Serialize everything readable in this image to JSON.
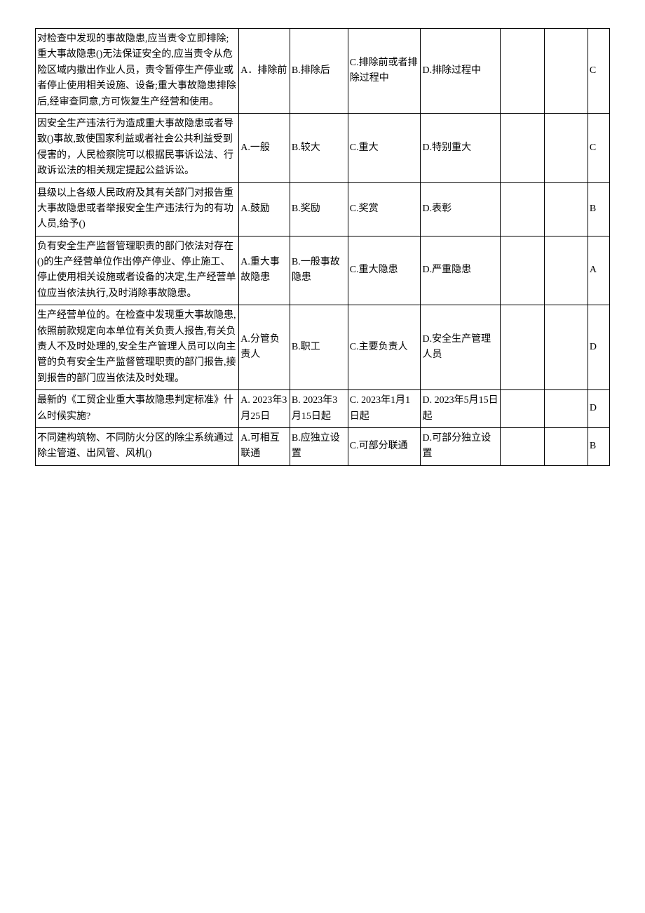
{
  "table": {
    "rows": [
      {
        "question": "对检查中发现的事故隐患,应当责令立即排除;重大事故隐患()无法保证安全的,应当责令从危险区域内撤出作业人员，责令暂停生产停业或者停止使用相关设施、设备;重大事故隐患排除后,经审查同意,方可恢复生产经营和使用。",
        "optA": "A．排除前",
        "optB": "B.排除后",
        "optC": "C.排除前或者排除过程中",
        "optD": "D.排除过程中",
        "optE": "",
        "optF": "",
        "answer": "C"
      },
      {
        "question": "因安全生产违法行为造成重大事故隐患或者导致()事故,致使国家利益或者社会公共利益受到侵害的，人民检察院可以根据民事诉讼法、行政诉讼法的相关规定提起公益诉讼。",
        "optA": "A.一般",
        "optB": "B.较大",
        "optC": "C.重大",
        "optD": "D.特别重大",
        "optE": "",
        "optF": "",
        "answer": "C"
      },
      {
        "question": "县级以上各级人民政府及其有关部门对报告重大事故隐患或者举报安全生产违法行为的有功人员,给予()",
        "optA": "A.鼓励",
        "optB": "B.奖励",
        "optC": "C.奖赏",
        "optD": "D.表彰",
        "optE": "",
        "optF": "",
        "answer": "B"
      },
      {
        "question": "负有安全生产监督管理职责的部门依法对存在()的生产经营单位作出停产停业、停止施工、停止使用相关设施或者设备的决定,生产经营单位应当依法执行,及时消除事故隐患。",
        "optA": "A.重大事故隐患",
        "optB": "B.一般事故隐患",
        "optC": "C.重大隐患",
        "optD": "D.严重隐患",
        "optE": "",
        "optF": "",
        "answer": "A"
      },
      {
        "question": "生产经营单位的。在检查中发现重大事故隐患,依照前款规定向本单位有关负责人报告,有关负责人不及时处理的,安全生产管理人员可以向主管的负有安全生产监督管理职责的部门报告,接到报告的部门应当依法及时处理。",
        "optA": "A.分管负责人",
        "optB": "B.职工",
        "optC": "C.主要负责人",
        "optD": "D.安全生产管理人员",
        "optE": "",
        "optF": "",
        "answer": "D"
      },
      {
        "question": "最新的《工贸企业重大事故隐患判定标准》什么时候实施?",
        "optA": "A. 2023年3月25日",
        "optB": "B. 2023年3月15日起",
        "optC": "C. 2023年1月1日起",
        "optD": "D. 2023年5月15日起",
        "optE": "",
        "optF": "",
        "answer": "D"
      },
      {
        "question": "不同建构筑物、不同防火分区的除尘系统通过除尘管道、出风管、风机()",
        "optA": "A.可相互联通",
        "optB": "B.应独立设置",
        "optC": "C.可部分联通",
        "optD": "D.可部分独立设置",
        "optE": "",
        "optF": "",
        "answer": "B"
      }
    ]
  }
}
